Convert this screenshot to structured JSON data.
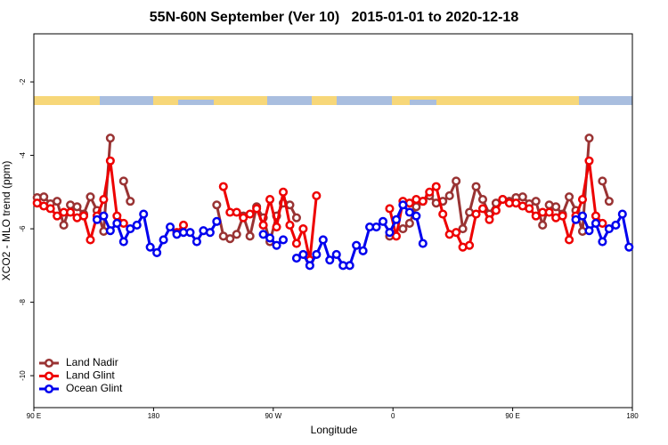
{
  "chart_data": {
    "type": "line",
    "title": "55N-60N September (Ver 10)   2015-01-01 to 2020-12-18",
    "x_label": "Longitude",
    "y_label": "XCO2 - MLO trend (ppm)",
    "xlim": [
      90,
      540
    ],
    "ylim": [
      -10.87,
      -0.69
    ],
    "xticks": [
      {
        "value": 90,
        "label": "90 E"
      },
      180,
      {
        "value": 270,
        "label": "90 W"
      },
      {
        "value": 360,
        "label": "0"
      },
      {
        "value": 450,
        "label": "90 E"
      },
      {
        "value": 540,
        "label": "180"
      }
    ],
    "yticks": [
      -10,
      -8,
      -6,
      -4,
      -2
    ],
    "legend": "lower left",
    "x": [
      92.5,
      97.5,
      102.5,
      107.5,
      112.5,
      117.5,
      122.5,
      127.5,
      132.5,
      137.5,
      142.5,
      147.5,
      152.5,
      157.5,
      162.5,
      167.5,
      172.5,
      177.5,
      182.5,
      187.5,
      192.5,
      197.5,
      202.5,
      207.5,
      212.5,
      217.5,
      222.5,
      227.5,
      232.5,
      237.5,
      242.5,
      247.5,
      252.5,
      257.5,
      262.5,
      267.5,
      272.5,
      277.5,
      282.5,
      287.5,
      292.5,
      297.5,
      302.5,
      307.5,
      312.5,
      317.5,
      322.5,
      327.5,
      332.5,
      337.5,
      342.5,
      347.5,
      352.5,
      357.5,
      362.5,
      367.5,
      372.5,
      377.5,
      382.5,
      387.5,
      392.5,
      397.5,
      402.5,
      407.5,
      412.5,
      417.5,
      422.5,
      427.5,
      432.5,
      437.5,
      442.5,
      447.5,
      452.5,
      457.5,
      462.5,
      467.5,
      472.5,
      477.5,
      482.5,
      487.5,
      492.5,
      497.5,
      502.5,
      507.5,
      512.5,
      517.5,
      522.5,
      527.5,
      532.5,
      537.5
    ],
    "series": [
      {
        "name": "Land Nadir",
        "color": "#993333",
        "values": [
          -5.15,
          -5.13,
          -5.32,
          -5.25,
          -5.9,
          -5.35,
          -5.4,
          -5.6,
          -5.13,
          -5.5,
          -6.07,
          -3.53,
          null,
          -4.7,
          -5.25,
          null,
          null,
          null,
          null,
          null,
          null,
          null,
          null,
          null,
          null,
          null,
          null,
          -5.35,
          -6.2,
          -6.27,
          -6.15,
          -5.65,
          -6.2,
          -5.4,
          -5.7,
          -6.35,
          -5.65,
          -5.3,
          -5.35,
          -5.7,
          null,
          null,
          null,
          null,
          null,
          null,
          null,
          null,
          null,
          null,
          null,
          null,
          null,
          -6.2,
          null,
          -6.0,
          -5.85,
          -5.4,
          -5.25,
          -5.1,
          -5.3,
          -5.25,
          -5.1,
          -4.7,
          -6.0,
          -5.55,
          -4.85,
          -5.2,
          -5.6,
          -5.3,
          -5.2,
          -5.25,
          -5.15,
          -5.13,
          -5.32,
          -5.25,
          -5.9,
          -5.35,
          -5.4,
          -5.6,
          -5.13,
          -5.5,
          -6.07,
          -3.53,
          null,
          -4.7,
          -5.25,
          null,
          null,
          null
        ]
      },
      {
        "name": "Land Glint",
        "color": "#ee0000",
        "values": [
          -5.3,
          -5.38,
          -5.45,
          -5.65,
          -5.55,
          -5.55,
          -5.7,
          -5.65,
          -6.3,
          -5.65,
          -5.2,
          -4.15,
          -5.65,
          -5.85,
          null,
          null,
          null,
          null,
          null,
          null,
          null,
          -6.1,
          -5.9,
          null,
          null,
          null,
          null,
          null,
          -4.85,
          -5.55,
          -5.55,
          -5.7,
          -5.6,
          -5.45,
          -5.9,
          -5.2,
          -5.95,
          -5.0,
          -5.9,
          -6.4,
          -6.0,
          -6.85,
          -5.1,
          null,
          null,
          null,
          null,
          null,
          null,
          null,
          null,
          null,
          null,
          -5.45,
          -6.2,
          -5.25,
          -5.3,
          -5.2,
          -5.25,
          -5.0,
          -4.85,
          -5.6,
          -6.15,
          -6.1,
          -6.5,
          -6.45,
          -5.6,
          -5.45,
          -5.75,
          -5.5,
          -5.2,
          -5.3,
          -5.3,
          -5.38,
          -5.45,
          -5.65,
          -5.55,
          -5.55,
          -5.7,
          -5.65,
          -6.3,
          -5.65,
          -5.2,
          -4.15,
          -5.65,
          -5.85,
          null,
          null,
          null,
          null
        ]
      },
      {
        "name": "Ocean Glint",
        "color": "#0000ee",
        "values": [
          null,
          null,
          null,
          null,
          null,
          null,
          null,
          null,
          null,
          -5.75,
          -5.65,
          -6.05,
          -5.85,
          -6.35,
          -6.0,
          -5.9,
          -5.6,
          -6.5,
          -6.65,
          -6.3,
          -5.95,
          -6.15,
          -6.1,
          -6.1,
          -6.35,
          -6.05,
          -6.1,
          -5.8,
          null,
          null,
          null,
          null,
          null,
          null,
          -6.15,
          -6.25,
          -6.45,
          -6.3,
          null,
          -6.8,
          -6.7,
          -7.0,
          -6.7,
          -6.3,
          -6.85,
          -6.7,
          -7.0,
          -7.0,
          -6.45,
          -6.6,
          -5.95,
          -5.95,
          -5.8,
          -6.1,
          -5.75,
          -5.35,
          -5.55,
          -5.65,
          -6.4,
          null,
          null,
          null,
          null,
          null,
          null,
          null,
          null,
          null,
          null,
          null,
          null,
          null,
          null,
          null,
          null,
          null,
          null,
          null,
          null,
          null,
          null,
          -5.75,
          -5.65,
          -6.05,
          -5.85,
          -6.35,
          -6.0,
          -5.9,
          -5.6,
          -6.5
        ]
      }
    ]
  }
}
